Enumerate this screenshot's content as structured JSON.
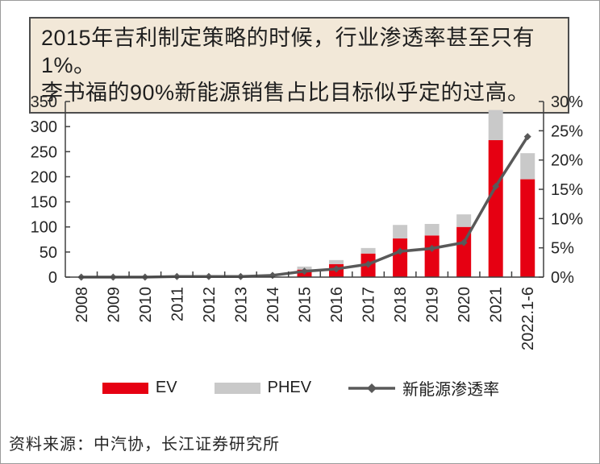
{
  "title_box": {
    "line1": "2015年吉利制定策略的时候，行业渗透率甚至只有1%。",
    "line2": "李书福的90%新能源销售占比目标似乎定的过高。"
  },
  "colors": {
    "ev": "#e60012",
    "phev": "#c9c9c9",
    "line": "#595959",
    "axis": "#404040",
    "title_box_bg": "#f2e8d8",
    "title_box_border": "#4d4d4d"
  },
  "chart_data": {
    "type": "combo-stacked-bar-line",
    "categories": [
      "2008",
      "2009",
      "2010",
      "2011",
      "2012",
      "2013",
      "2014",
      "2015",
      "2016",
      "2017",
      "2018",
      "2019",
      "2020",
      "2021",
      "2022.1-6"
    ],
    "series": [
      {
        "name": "EV",
        "type": "bar",
        "axis": "left",
        "color_key": "ev",
        "values": [
          0,
          0,
          0,
          0,
          0,
          0,
          0,
          15,
          26,
          47,
          77,
          83,
          100,
          273,
          195
        ]
      },
      {
        "name": "PHEV",
        "type": "bar",
        "axis": "left",
        "color_key": "phev",
        "values": [
          0,
          0,
          0,
          0,
          0,
          0,
          0,
          6,
          8,
          11,
          27,
          23,
          25,
          60,
          52
        ]
      },
      {
        "name": "新能源渗透率",
        "type": "line",
        "axis": "right",
        "color_key": "line",
        "marker": "diamond",
        "values": [
          0,
          0,
          0,
          0.1,
          0.1,
          0.1,
          0.3,
          1,
          1.4,
          2.2,
          4.4,
          4.9,
          5.9,
          15.5,
          24
        ]
      }
    ],
    "left_axis": {
      "min": 0,
      "max": 350,
      "step": 50,
      "ticks": [
        "0",
        "50",
        "100",
        "150",
        "200",
        "250",
        "300",
        "350"
      ]
    },
    "right_axis": {
      "min": 0,
      "max": 30,
      "step": 5,
      "ticks": [
        "0%",
        "5%",
        "10%",
        "15%",
        "20%",
        "25%",
        "30%"
      ]
    },
    "grid": false,
    "legend_position": "bottom",
    "bars_stacked": true
  },
  "legend": [
    {
      "label": "EV"
    },
    {
      "label": "PHEV"
    },
    {
      "label": "新能源渗透率"
    }
  ],
  "source": "资料来源：中汽协，长江证券研究所"
}
